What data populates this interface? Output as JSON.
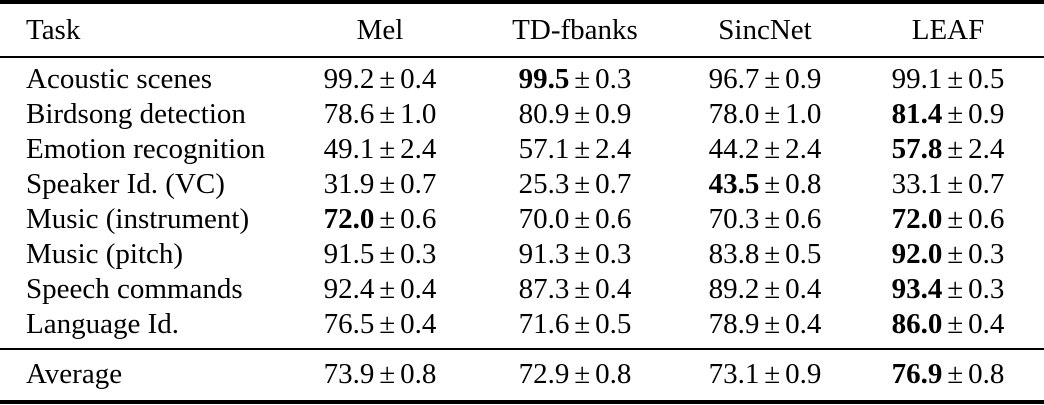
{
  "table": {
    "plus_minus": "±",
    "columns": [
      "Task",
      "Mel",
      "TD-fbanks",
      "SincNet",
      "LEAF"
    ],
    "rows": [
      {
        "task": "Acoustic scenes",
        "cells": [
          {
            "mean": "99.2",
            "std": "0.4",
            "bold": false
          },
          {
            "mean": "99.5",
            "std": "0.3",
            "bold": true
          },
          {
            "mean": "96.7",
            "std": "0.9",
            "bold": false
          },
          {
            "mean": "99.1",
            "std": "0.5",
            "bold": false
          }
        ]
      },
      {
        "task": "Birdsong detection",
        "cells": [
          {
            "mean": "78.6",
            "std": "1.0",
            "bold": false
          },
          {
            "mean": "80.9",
            "std": "0.9",
            "bold": false
          },
          {
            "mean": "78.0",
            "std": "1.0",
            "bold": false
          },
          {
            "mean": "81.4",
            "std": "0.9",
            "bold": true
          }
        ]
      },
      {
        "task": "Emotion recognition",
        "cells": [
          {
            "mean": "49.1",
            "std": "2.4",
            "bold": false
          },
          {
            "mean": "57.1",
            "std": "2.4",
            "bold": false
          },
          {
            "mean": "44.2",
            "std": "2.4",
            "bold": false
          },
          {
            "mean": "57.8",
            "std": "2.4",
            "bold": true
          }
        ]
      },
      {
        "task": "Speaker Id. (VC)",
        "cells": [
          {
            "mean": "31.9",
            "std": "0.7",
            "bold": false
          },
          {
            "mean": "25.3",
            "std": "0.7",
            "bold": false
          },
          {
            "mean": "43.5",
            "std": "0.8",
            "bold": true
          },
          {
            "mean": "33.1",
            "std": "0.7",
            "bold": false
          }
        ]
      },
      {
        "task": "Music (instrument)",
        "cells": [
          {
            "mean": "72.0",
            "std": "0.6",
            "bold": true
          },
          {
            "mean": "70.0",
            "std": "0.6",
            "bold": false
          },
          {
            "mean": "70.3",
            "std": "0.6",
            "bold": false
          },
          {
            "mean": "72.0",
            "std": "0.6",
            "bold": true
          }
        ]
      },
      {
        "task": "Music (pitch)",
        "cells": [
          {
            "mean": "91.5",
            "std": "0.3",
            "bold": false
          },
          {
            "mean": "91.3",
            "std": "0.3",
            "bold": false
          },
          {
            "mean": "83.8",
            "std": "0.5",
            "bold": false
          },
          {
            "mean": "92.0",
            "std": "0.3",
            "bold": true
          }
        ]
      },
      {
        "task": "Speech commands",
        "cells": [
          {
            "mean": "92.4",
            "std": "0.4",
            "bold": false
          },
          {
            "mean": "87.3",
            "std": "0.4",
            "bold": false
          },
          {
            "mean": "89.2",
            "std": "0.4",
            "bold": false
          },
          {
            "mean": "93.4",
            "std": "0.3",
            "bold": true
          }
        ]
      },
      {
        "task": "Language Id.",
        "cells": [
          {
            "mean": "76.5",
            "std": "0.4",
            "bold": false
          },
          {
            "mean": "71.6",
            "std": "0.5",
            "bold": false
          },
          {
            "mean": "78.9",
            "std": "0.4",
            "bold": false
          },
          {
            "mean": "86.0",
            "std": "0.4",
            "bold": true
          }
        ]
      }
    ],
    "summary_row": {
      "task": "Average",
      "cells": [
        {
          "mean": "73.9",
          "std": "0.8",
          "bold": false
        },
        {
          "mean": "72.9",
          "std": "0.8",
          "bold": false
        },
        {
          "mean": "73.1",
          "std": "0.9",
          "bold": false
        },
        {
          "mean": "76.9",
          "std": "0.8",
          "bold": true
        }
      ]
    }
  }
}
